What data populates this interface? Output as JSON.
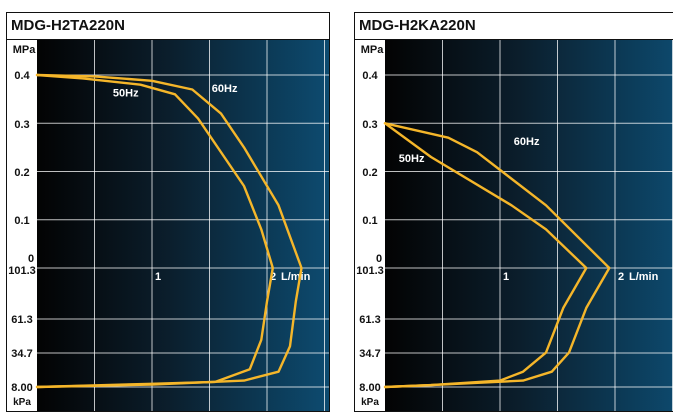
{
  "chart_data": [
    {
      "type": "line",
      "title": "MDG-H2TA220N",
      "y_unit_top": "MPa",
      "y_unit_bottom": "kPa",
      "x_unit": "L/min",
      "y_ticks_pressure": [
        "0.4",
        "0.3",
        "0.2",
        "0.1",
        "0"
      ],
      "y_ticks_vacuum": [
        "101.3",
        "61.3",
        "34.7",
        "8.00"
      ],
      "x_ticks": [
        "1",
        "2"
      ],
      "xlim": [
        0,
        2.8
      ],
      "series": [
        {
          "name": "50Hz",
          "pressure": {
            "x": [
              0.0,
              0.4,
              0.9,
              1.2,
              1.4,
              1.8,
              1.95,
              2.05
            ],
            "y": [
              0.4,
              0.393,
              0.38,
              0.36,
              0.31,
              0.17,
              0.08,
              0.0
            ]
          },
          "vacuum": {
            "x": [
              2.05,
              2.0,
              1.95,
              1.85,
              1.55,
              1.0,
              0.4,
              0.0
            ],
            "y": [
              101.3,
              75.0,
              45.0,
              22.0,
              12.0,
              10.5,
              9.0,
              8.0
            ]
          }
        },
        {
          "name": "60Hz",
          "pressure": {
            "x": [
              0.0,
              0.5,
              1.0,
              1.35,
              1.6,
              1.8,
              2.1,
              2.3
            ],
            "y": [
              0.4,
              0.397,
              0.388,
              0.37,
              0.32,
              0.25,
              0.13,
              0.0
            ]
          },
          "vacuum": {
            "x": [
              2.3,
              2.25,
              2.2,
              2.1,
              1.8,
              1.0,
              0.4,
              0.0
            ],
            "y": [
              101.3,
              75.0,
              40.0,
              20.0,
              13.0,
              10.0,
              8.8,
              8.0
            ]
          }
        }
      ]
    },
    {
      "type": "line",
      "title": "MDG-H2KA220N",
      "y_unit_top": "MPa",
      "y_unit_bottom": "kPa",
      "x_unit": "L/min",
      "y_ticks_pressure": [
        "0.4",
        "0.3",
        "0.2",
        "0.1",
        "0"
      ],
      "y_ticks_vacuum": [
        "101.3",
        "61.3",
        "34.7",
        "8.00"
      ],
      "x_ticks": [
        "1",
        "2"
      ],
      "xlim": [
        0,
        2.8
      ],
      "series": [
        {
          "name": "50Hz",
          "pressure": {
            "x": [
              0.0,
              0.4,
              1.1,
              1.4,
              1.75
            ],
            "y": [
              0.3,
              0.23,
              0.13,
              0.08,
              0.0
            ]
          },
          "vacuum": {
            "x": [
              1.75,
              1.55,
              1.4,
              1.2,
              1.0,
              0.4,
              0.0
            ],
            "y": [
              101.3,
              70.0,
              35.0,
              20.0,
              13.0,
              9.5,
              8.0
            ]
          }
        },
        {
          "name": "60Hz",
          "pressure": {
            "x": [
              0.0,
              0.55,
              0.8,
              1.4,
              1.95
            ],
            "y": [
              0.3,
              0.27,
              0.24,
              0.13,
              0.0
            ]
          },
          "vacuum": {
            "x": [
              1.95,
              1.75,
              1.6,
              1.45,
              1.2,
              0.4,
              0.0
            ],
            "y": [
              101.3,
              70.0,
              35.0,
              20.0,
              13.0,
              9.5,
              8.0
            ]
          }
        }
      ]
    }
  ]
}
